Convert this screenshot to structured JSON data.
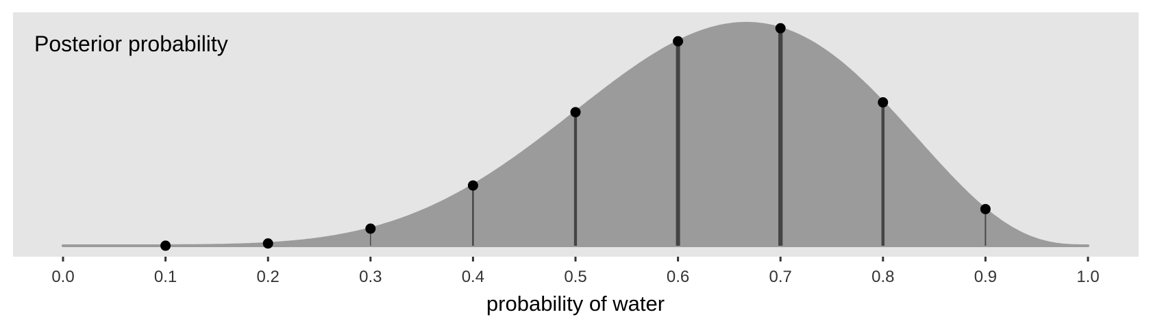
{
  "chart_data": {
    "type": "area",
    "title": "Posterior probability",
    "xlabel": "probability of water",
    "ylabel": "",
    "xlim": [
      0,
      1
    ],
    "ylim": [
      0,
      2.8
    ],
    "grid": false,
    "y_axis_shown": false,
    "x_ticks": [
      "0.0",
      "0.1",
      "0.2",
      "0.3",
      "0.4",
      "0.5",
      "0.6",
      "0.7",
      "0.8",
      "0.9",
      "1.0"
    ],
    "curve": {
      "distribution": "Beta(7,4) density",
      "alpha": 7,
      "beta": 4
    },
    "points": {
      "x": [
        0.1,
        0.2,
        0.3,
        0.4,
        0.5,
        0.6,
        0.7,
        0.8,
        0.9
      ],
      "y": [
        0.0006,
        0.028,
        0.21,
        0.74,
        1.64,
        2.51,
        2.67,
        1.76,
        0.45
      ]
    },
    "colors": {
      "panel": "#e5e5e5",
      "area": "#9b9b9b",
      "segments": "#444444",
      "points": "#000000",
      "text": "#333333"
    }
  }
}
